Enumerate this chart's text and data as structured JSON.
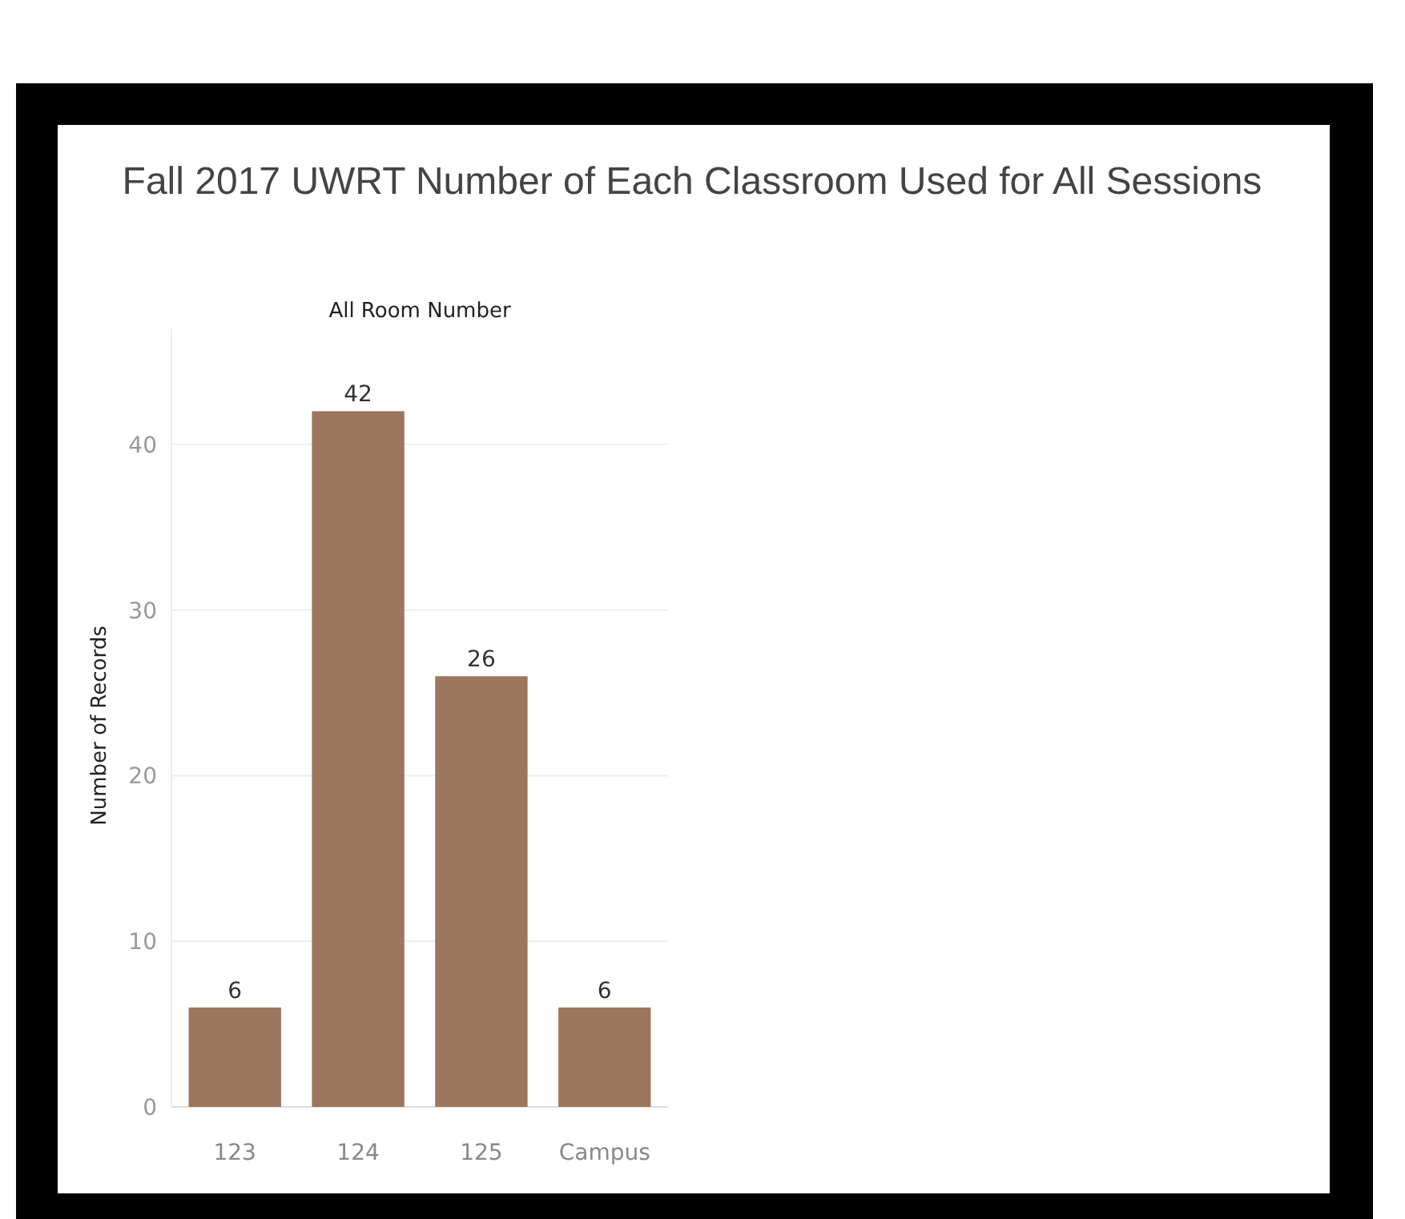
{
  "chart_data": {
    "type": "bar",
    "title": "Fall 2017 UWRT Number of Each Classroom Used for All Sessions",
    "subtitle": "All Room Number",
    "ylabel": "Number of Records",
    "categories": [
      "123",
      "124",
      "125",
      "Campus"
    ],
    "values": [
      6,
      42,
      26,
      6
    ],
    "color": "#9c765e",
    "ylim": [
      0,
      47
    ],
    "yticks": [
      0,
      10,
      20,
      30,
      40
    ],
    "grid": "y",
    "data_labels": true
  }
}
